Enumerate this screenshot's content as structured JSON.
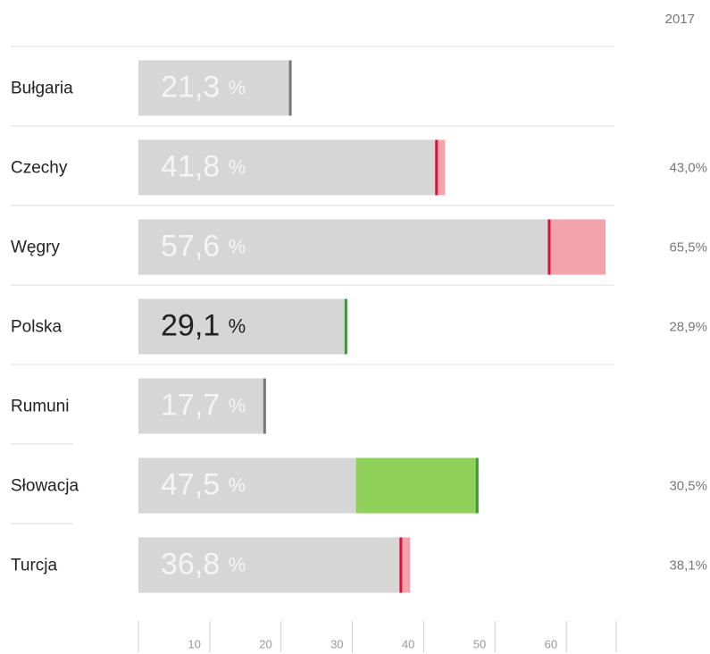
{
  "chart_data": {
    "type": "bar",
    "orientation": "horizontal",
    "column_label": "2017",
    "categories": [
      "Bułgaria",
      "Czechy",
      "Węgry",
      "Polska",
      "Rumuni",
      "Słowacja",
      "Turcja"
    ],
    "values": [
      21.3,
      41.8,
      57.6,
      29.1,
      17.7,
      47.5,
      36.8
    ],
    "value_labels": [
      "21,3 %",
      "41,8 %",
      "57,6 %",
      "29,1 %",
      "17,7 %",
      "47,5 %",
      "36,8 %"
    ],
    "previous_values": [
      null,
      43.0,
      65.5,
      28.9,
      null,
      30.5,
      38.1
    ],
    "previous_labels": [
      null,
      "43,0%",
      "65,5%",
      "28,9%",
      null,
      "30,5%",
      "38,1%"
    ],
    "highlight": "Polska",
    "color": "#d6d6d6",
    "rise_color": "#8fd15a",
    "fall_color": "#f4a3ab",
    "rise_marker": "#3a9a3a",
    "fall_marker": "#d4143c",
    "neutral_marker": "#777777",
    "xlim": [
      0,
      67
    ],
    "xticks": [
      10,
      20,
      30,
      40,
      50,
      60
    ]
  }
}
